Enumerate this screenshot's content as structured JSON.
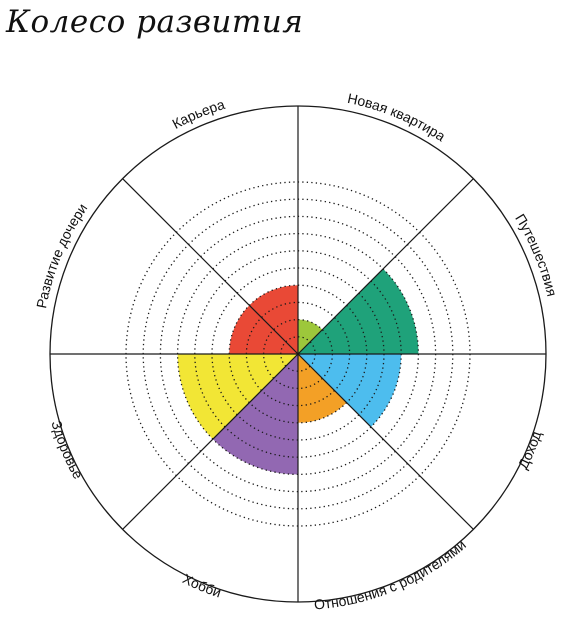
{
  "title": "Колесо развития",
  "scale": {
    "levels": 10
  },
  "colors": {
    "outline": "#1a1a1a",
    "dotted": "#1a1a1a"
  },
  "chart_data": {
    "type": "radar",
    "max": 10,
    "segments": [
      {
        "label": "Новая квартира",
        "value": 2,
        "color": "#9dc73b"
      },
      {
        "label": "Путешествия",
        "value": 7,
        "color": "#1fa27a"
      },
      {
        "label": "Доход",
        "value": 6,
        "color": "#4dbdee"
      },
      {
        "label": "Отношения с родителями",
        "value": 4,
        "color": "#f3a026"
      },
      {
        "label": "Хобби",
        "value": 7,
        "color": "#9268b2"
      },
      {
        "label": "Здоровье",
        "value": 7,
        "color": "#f2e635"
      },
      {
        "label": "Развитие дочери",
        "value": 4,
        "color": "#e94936"
      },
      {
        "label": "Карьера",
        "value": 4,
        "color": "#e94936"
      }
    ]
  }
}
